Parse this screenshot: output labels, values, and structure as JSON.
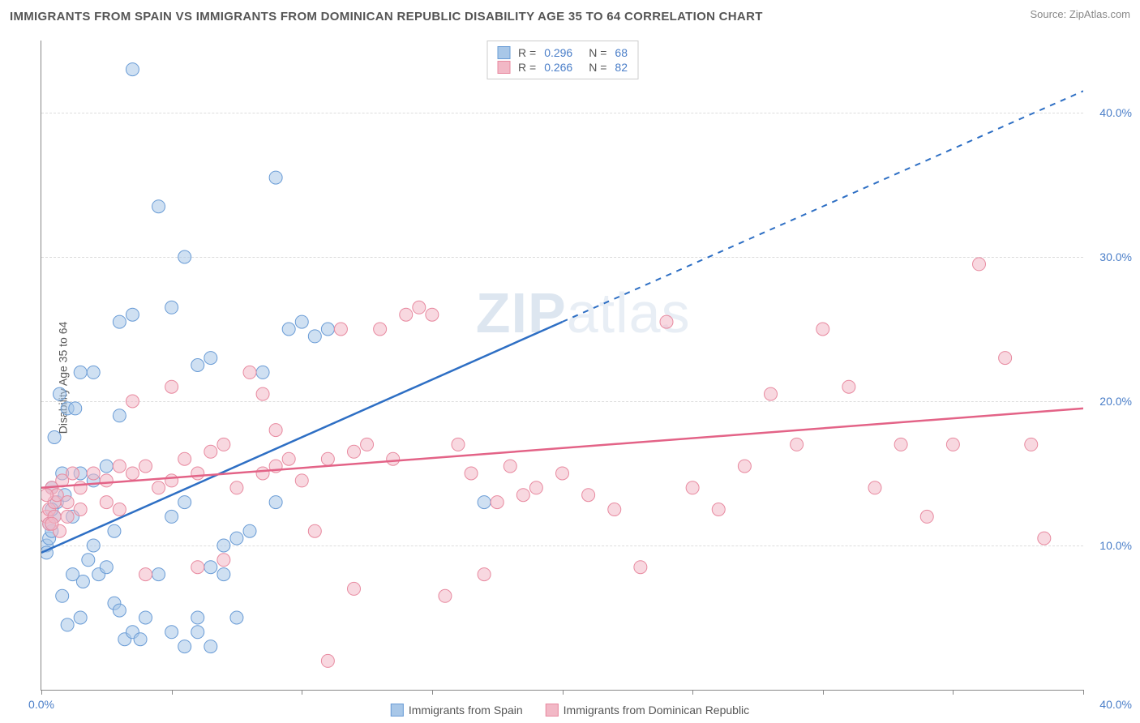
{
  "title": "IMMIGRANTS FROM SPAIN VS IMMIGRANTS FROM DOMINICAN REPUBLIC DISABILITY AGE 35 TO 64 CORRELATION CHART",
  "source": "Source: ZipAtlas.com",
  "ylabel": "Disability Age 35 to 64",
  "watermark": "ZIPatlas",
  "chart": {
    "type": "scatter",
    "xlim": [
      0,
      40
    ],
    "ylim": [
      0,
      45
    ],
    "x_tick_label_min": "0.0%",
    "x_tick_label_max": "40.0%",
    "xticks": [
      0,
      5,
      10,
      15,
      20,
      25,
      30,
      35,
      40
    ],
    "yticks": [
      10,
      20,
      30,
      40
    ],
    "ytick_labels": [
      "10.0%",
      "20.0%",
      "30.0%",
      "40.0%"
    ],
    "background_color": "#ffffff",
    "grid_color": "#dddddd",
    "axis_color": "#888888"
  },
  "series": [
    {
      "name": "Immigrants from Spain",
      "legend_label": "Immigrants from Spain",
      "fill_color": "#a8c7e8",
      "stroke_color": "#6a9cd6",
      "line_color": "#2e6fc4",
      "R": "0.296",
      "N": "68",
      "marker_radius": 8,
      "marker_opacity": 0.55,
      "trend": {
        "x1": 0,
        "y1": 9.5,
        "x2": 20,
        "y2": 25.5,
        "dash_x2": 40,
        "dash_y2": 41.5
      },
      "points": [
        [
          0.2,
          10
        ],
        [
          0.3,
          10.5
        ],
        [
          0.4,
          11
        ],
        [
          0.2,
          9.5
        ],
        [
          0.5,
          12
        ],
        [
          0.3,
          11.5
        ],
        [
          0.6,
          13
        ],
        [
          0.4,
          14
        ],
        [
          0.8,
          15
        ],
        [
          0.5,
          17.5
        ],
        [
          1,
          19.5
        ],
        [
          0.7,
          20.5
        ],
        [
          0.4,
          12.5
        ],
        [
          0.9,
          13.5
        ],
        [
          1.2,
          12
        ],
        [
          1.5,
          15
        ],
        [
          1.8,
          9
        ],
        [
          2,
          10
        ],
        [
          1.3,
          19.5
        ],
        [
          1.6,
          7.5
        ],
        [
          2.2,
          8
        ],
        [
          2.5,
          8.5
        ],
        [
          2.8,
          6
        ],
        [
          3,
          5.5
        ],
        [
          3.2,
          3.5
        ],
        [
          3.5,
          4
        ],
        [
          3.8,
          3.5
        ],
        [
          4,
          5
        ],
        [
          4.5,
          8
        ],
        [
          5,
          4
        ],
        [
          5.5,
          3
        ],
        [
          6,
          4
        ],
        [
          6.5,
          3
        ],
        [
          3.5,
          43
        ],
        [
          5,
          26.5
        ],
        [
          1.5,
          22
        ],
        [
          2,
          22
        ],
        [
          3,
          25.5
        ],
        [
          3.5,
          26
        ],
        [
          5.5,
          30
        ],
        [
          6,
          22.5
        ],
        [
          6.5,
          23
        ],
        [
          7,
          10
        ],
        [
          7.5,
          10.5
        ],
        [
          8,
          11
        ],
        [
          8.5,
          22
        ],
        [
          9,
          13
        ],
        [
          9.5,
          25
        ],
        [
          10,
          25.5
        ],
        [
          10.5,
          24.5
        ],
        [
          11,
          25
        ],
        [
          4.5,
          33.5
        ],
        [
          5,
          12
        ],
        [
          5.5,
          13
        ],
        [
          6,
          5
        ],
        [
          6.5,
          8.5
        ],
        [
          7,
          8
        ],
        [
          7.5,
          5
        ],
        [
          2,
          14.5
        ],
        [
          2.5,
          15.5
        ],
        [
          3,
          19
        ],
        [
          17,
          13
        ],
        [
          9,
          35.5
        ],
        [
          2.8,
          11
        ],
        [
          1.2,
          8
        ],
        [
          0.8,
          6.5
        ],
        [
          1.5,
          5
        ],
        [
          1,
          4.5
        ]
      ]
    },
    {
      "name": "Immigrants from Dominican Republic",
      "legend_label": "Immigrants from Dominican Republic",
      "fill_color": "#f2b8c6",
      "stroke_color": "#e88aa0",
      "line_color": "#e36387",
      "R": "0.266",
      "N": "82",
      "marker_radius": 8,
      "marker_opacity": 0.55,
      "trend": {
        "x1": 0,
        "y1": 14,
        "x2": 40,
        "y2": 19.5
      },
      "points": [
        [
          0.2,
          12
        ],
        [
          0.3,
          12.5
        ],
        [
          0.5,
          13
        ],
        [
          0.4,
          14
        ],
        [
          0.6,
          13.5
        ],
        [
          0.8,
          14.5
        ],
        [
          1,
          13
        ],
        [
          1.2,
          15
        ],
        [
          1.5,
          14
        ],
        [
          2,
          15
        ],
        [
          2.5,
          14.5
        ],
        [
          3,
          15.5
        ],
        [
          3.5,
          15
        ],
        [
          4,
          15.5
        ],
        [
          4.5,
          14
        ],
        [
          5,
          14.5
        ],
        [
          5.5,
          16
        ],
        [
          6,
          15
        ],
        [
          6.5,
          16.5
        ],
        [
          7,
          17
        ],
        [
          7.5,
          14
        ],
        [
          8,
          22
        ],
        [
          8.5,
          15
        ],
        [
          9,
          15.5
        ],
        [
          9.5,
          16
        ],
        [
          10,
          14.5
        ],
        [
          10.5,
          11
        ],
        [
          11,
          16
        ],
        [
          11.5,
          25
        ],
        [
          12,
          16.5
        ],
        [
          12.5,
          17
        ],
        [
          13,
          25
        ],
        [
          13.5,
          16
        ],
        [
          14,
          26
        ],
        [
          14.5,
          26.5
        ],
        [
          15,
          26
        ],
        [
          15.5,
          6.5
        ],
        [
          16,
          17
        ],
        [
          16.5,
          15
        ],
        [
          17,
          8
        ],
        [
          17.5,
          13
        ],
        [
          18,
          15.5
        ],
        [
          18.5,
          13.5
        ],
        [
          19,
          14
        ],
        [
          20,
          15
        ],
        [
          21,
          13.5
        ],
        [
          22,
          12.5
        ],
        [
          23,
          8.5
        ],
        [
          24,
          25.5
        ],
        [
          25,
          14
        ],
        [
          26,
          12.5
        ],
        [
          27,
          15.5
        ],
        [
          28,
          20.5
        ],
        [
          29,
          17
        ],
        [
          30,
          25
        ],
        [
          31,
          21
        ],
        [
          32,
          14
        ],
        [
          33,
          17
        ],
        [
          34,
          12
        ],
        [
          35,
          17
        ],
        [
          36,
          29.5
        ],
        [
          37,
          23
        ],
        [
          38,
          17
        ],
        [
          38.5,
          10.5
        ],
        [
          11,
          2
        ],
        [
          12,
          7
        ],
        [
          6,
          8.5
        ],
        [
          7,
          9
        ],
        [
          4,
          8
        ],
        [
          3.5,
          20
        ],
        [
          5,
          21
        ],
        [
          8.5,
          20.5
        ],
        [
          9,
          18
        ],
        [
          2.5,
          13
        ],
        [
          3,
          12.5
        ],
        [
          1,
          12
        ],
        [
          1.5,
          12.5
        ],
        [
          0.3,
          11.5
        ],
        [
          0.2,
          13.5
        ],
        [
          0.5,
          12
        ],
        [
          0.7,
          11
        ],
        [
          0.4,
          11.5
        ]
      ]
    }
  ],
  "stats_labels": {
    "R_prefix": "R =",
    "N_prefix": "N ="
  }
}
